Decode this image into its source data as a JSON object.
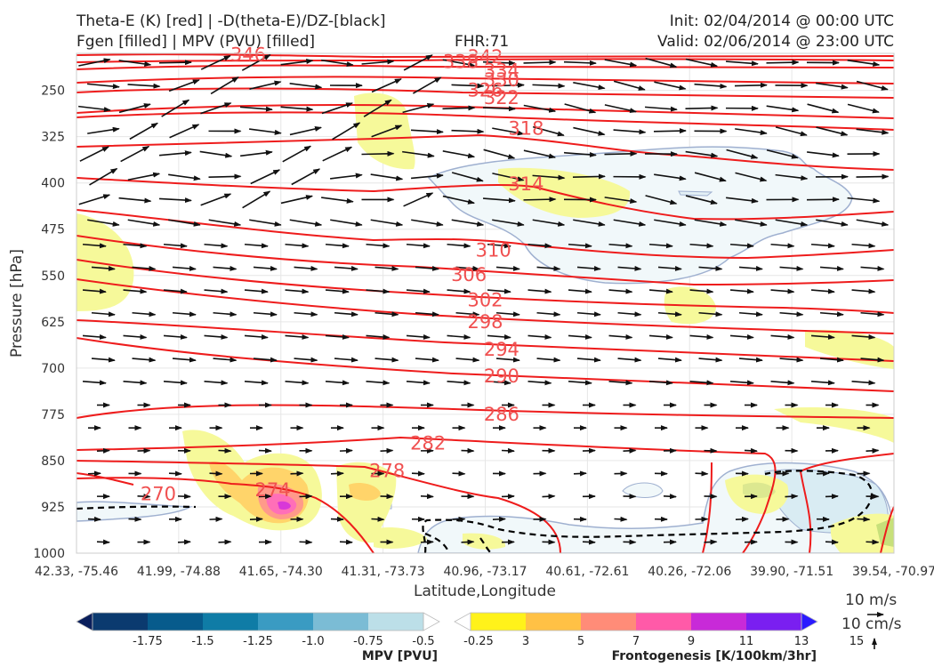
{
  "header": {
    "line1_left": "Theta-E (K) [red] | -D(theta-E)/DZ-[black]",
    "line2_left": "Fgen [filled] | MPV (PVU) [filled]",
    "fhr": "FHR:71",
    "init": "Init: 02/04/2014 @ 00:00 UTC",
    "valid": "Valid: 02/06/2014 @ 23:00 UTC"
  },
  "chart_data": {
    "type": "cross-section",
    "xlabel": "Latitude,Longitude",
    "ylabel": "Pressure [hPa]",
    "x_ticks": [
      "42.33, -75.46",
      "41.99, -74.88",
      "41.65, -74.30",
      "41.31, -73.73",
      "40.96, -73.17",
      "40.61, -72.61",
      "40.26, -72.06",
      "39.90, -71.51",
      "39.54, -70.97"
    ],
    "y_ticks": [
      250,
      325,
      400,
      475,
      550,
      625,
      700,
      775,
      850,
      925,
      1000
    ],
    "ylim": [
      1000,
      190
    ],
    "theta_e_labels": [
      {
        "value": "346",
        "x": 0.21,
        "p": 192
      },
      {
        "value": "342",
        "x": 0.5,
        "p": 196
      },
      {
        "value": "338",
        "x": 0.47,
        "p": 204
      },
      {
        "value": "334",
        "x": 0.52,
        "p": 218
      },
      {
        "value": "330",
        "x": 0.52,
        "p": 233
      },
      {
        "value": "326",
        "x": 0.5,
        "p": 250
      },
      {
        "value": "322",
        "x": 0.52,
        "p": 262
      },
      {
        "value": "318",
        "x": 0.55,
        "p": 312
      },
      {
        "value": "314",
        "x": 0.55,
        "p": 402
      },
      {
        "value": "310",
        "x": 0.51,
        "p": 509
      },
      {
        "value": "306",
        "x": 0.48,
        "p": 549
      },
      {
        "value": "302",
        "x": 0.5,
        "p": 590
      },
      {
        "value": "298",
        "x": 0.5,
        "p": 625
      },
      {
        "value": "294",
        "x": 0.52,
        "p": 670
      },
      {
        "value": "290",
        "x": 0.52,
        "p": 713
      },
      {
        "value": "286",
        "x": 0.52,
        "p": 775
      },
      {
        "value": "282",
        "x": 0.43,
        "p": 822
      },
      {
        "value": "278",
        "x": 0.38,
        "p": 867
      },
      {
        "value": "274",
        "x": 0.24,
        "p": 898
      },
      {
        "value": "270",
        "x": 0.1,
        "p": 904
      }
    ],
    "legend": {
      "vector_scale": [
        "10 m/s",
        "10 cm/s"
      ]
    },
    "mpv_colorbar": {
      "title": "MPV [PVU]",
      "ticks": [
        "-1.75",
        "-1.5",
        "-1.25",
        "-1.0",
        "-0.75",
        "-0.5",
        "-0.25"
      ],
      "colors": [
        "#0a1f5c",
        "#0b3a6f",
        "#075b8c",
        "#0f7ca6",
        "#3a9bc2",
        "#7bbcd5",
        "#bcdfe8",
        "#ffffff"
      ]
    },
    "fgen_colorbar": {
      "title": "Frontogenesis [K/100km/3hr]",
      "ticks": [
        "3",
        "5",
        "7",
        "9",
        "11",
        "13",
        "15"
      ],
      "colors": [
        "#ffffff",
        "#fff21a",
        "#ffc145",
        "#ff8c78",
        "#ff5aa8",
        "#c82ad8",
        "#7a1ff0",
        "#2a1aff"
      ]
    }
  }
}
